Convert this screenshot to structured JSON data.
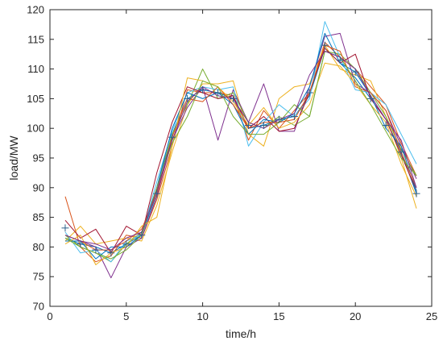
{
  "chart_data": {
    "type": "line",
    "title": "",
    "xlabel": "time/h",
    "ylabel": "load/MW",
    "xlim": [
      0,
      25
    ],
    "ylim": [
      70,
      120
    ],
    "xticks": [
      0,
      5,
      10,
      15,
      20,
      25
    ],
    "yticks": [
      70,
      75,
      80,
      85,
      90,
      95,
      100,
      105,
      110,
      115,
      120
    ],
    "grid": false,
    "legend": "none",
    "x": [
      1,
      2,
      3,
      4,
      5,
      6,
      7,
      8,
      9,
      10,
      11,
      12,
      13,
      14,
      15,
      16,
      17,
      18,
      19,
      20,
      21,
      22,
      23,
      24
    ],
    "series": [
      {
        "color": "#0072BD",
        "values": [
          81.5,
          80.5,
          80.0,
          79.0,
          80.5,
          82.0,
          89.0,
          99.0,
          105.0,
          106.5,
          106.0,
          105.0,
          100.0,
          100.5,
          101.5,
          102.0,
          105.5,
          113.5,
          111.0,
          108.5,
          105.0,
          101.5,
          96.0,
          89.0
        ]
      },
      {
        "color": "#D95319",
        "values": [
          88.5,
          80.0,
          77.5,
          78.5,
          82.0,
          81.5,
          88.0,
          97.0,
          106.5,
          106.0,
          106.0,
          105.5,
          98.0,
          103.0,
          100.0,
          103.0,
          106.0,
          114.5,
          112.0,
          110.0,
          107.0,
          104.0,
          97.5,
          92.0
        ]
      },
      {
        "color": "#EDB120",
        "values": [
          81.0,
          83.5,
          80.5,
          81.0,
          81.5,
          81.0,
          87.0,
          96.0,
          104.0,
          107.5,
          107.5,
          108.0,
          99.0,
          97.0,
          105.0,
          107.0,
          107.5,
          114.0,
          110.0,
          109.0,
          108.0,
          102.0,
          95.0,
          86.5
        ]
      },
      {
        "color": "#7E2F8E",
        "values": [
          81.0,
          81.0,
          80.0,
          74.8,
          80.0,
          81.5,
          88.5,
          98.0,
          103.5,
          107.0,
          98.0,
          106.5,
          101.0,
          107.5,
          99.5,
          99.5,
          107.0,
          115.5,
          116.0,
          107.5,
          106.0,
          103.0,
          97.0,
          91.5
        ]
      },
      {
        "color": "#77AC30",
        "values": [
          82.0,
          80.0,
          79.0,
          77.5,
          80.5,
          82.5,
          90.0,
          99.0,
          104.0,
          110.0,
          105.0,
          106.0,
          101.0,
          100.0,
          102.0,
          100.5,
          102.0,
          113.0,
          112.5,
          110.0,
          106.0,
          102.0,
          96.5,
          92.0
        ]
      },
      {
        "color": "#4DBEEE",
        "values": [
          82.5,
          79.0,
          79.5,
          77.5,
          81.0,
          82.0,
          91.0,
          99.5,
          106.0,
          107.0,
          106.5,
          107.0,
          97.0,
          101.0,
          104.0,
          102.0,
          105.0,
          118.0,
          112.0,
          106.5,
          106.0,
          104.0,
          99.0,
          94.0
        ]
      },
      {
        "color": "#A2142F",
        "values": [
          84.5,
          81.5,
          83.0,
          79.0,
          83.5,
          82.0,
          92.5,
          101.0,
          107.0,
          106.0,
          105.0,
          105.5,
          100.0,
          102.0,
          99.5,
          100.0,
          106.0,
          113.5,
          111.0,
          112.5,
          105.0,
          101.5,
          95.5,
          89.5
        ]
      },
      {
        "color": "#0072BD",
        "values": [
          81.0,
          81.0,
          78.0,
          80.0,
          80.0,
          82.0,
          90.0,
          100.0,
          106.0,
          105.0,
          106.0,
          104.0,
          99.0,
          101.5,
          101.0,
          102.5,
          107.0,
          116.0,
          111.0,
          109.5,
          105.5,
          100.0,
          97.0,
          89.5
        ]
      },
      {
        "color": "#D95319",
        "values": [
          82.0,
          81.0,
          79.5,
          79.5,
          81.0,
          83.0,
          89.0,
          98.5,
          105.0,
          104.5,
          107.0,
          104.0,
          100.0,
          101.0,
          101.0,
          101.5,
          106.0,
          114.0,
          113.0,
          107.0,
          106.0,
          103.0,
          96.0,
          90.0
        ]
      },
      {
        "color": "#EDB120",
        "values": [
          80.5,
          82.0,
          77.0,
          79.0,
          80.0,
          83.5,
          85.0,
          97.0,
          108.5,
          108.0,
          107.0,
          104.5,
          100.5,
          103.5,
          100.0,
          101.0,
          104.0,
          111.0,
          110.5,
          107.5,
          104.0,
          101.0,
          94.0,
          88.5
        ]
      },
      {
        "color": "#77AC30",
        "values": [
          81.5,
          80.0,
          79.0,
          78.0,
          79.5,
          82.0,
          90.0,
          97.5,
          102.0,
          108.0,
          107.0,
          102.0,
          99.0,
          99.0,
          101.0,
          104.0,
          102.0,
          113.0,
          112.0,
          108.0,
          104.0,
          99.5,
          95.0,
          92.0
        ]
      },
      {
        "color": "#7E2F8E",
        "values": [
          82.0,
          81.0,
          80.5,
          79.5,
          81.5,
          82.5,
          89.5,
          98.0,
          104.5,
          107.0,
          105.5,
          105.0,
          101.0,
          100.0,
          101.5,
          102.5,
          109.0,
          113.0,
          112.0,
          110.0,
          105.5,
          101.5,
          98.0,
          90.0
        ]
      }
    ],
    "marker_series": {
      "marker": "+",
      "color": "#2C5F8A",
      "x": [
        1,
        2,
        3,
        4,
        5,
        6,
        7,
        8,
        9,
        10,
        11,
        12,
        13,
        14,
        15,
        16,
        17,
        18,
        19,
        20,
        21,
        22,
        23,
        24
      ],
      "values": [
        83.2,
        80.5,
        79.5,
        79.0,
        80.5,
        82.0,
        89.0,
        98.5,
        105.0,
        106.5,
        106.0,
        105.0,
        100.5,
        100.5,
        101.5,
        102.0,
        106.0,
        114.0,
        111.5,
        109.5,
        105.0,
        100.5,
        96.0,
        89.0
      ]
    }
  }
}
